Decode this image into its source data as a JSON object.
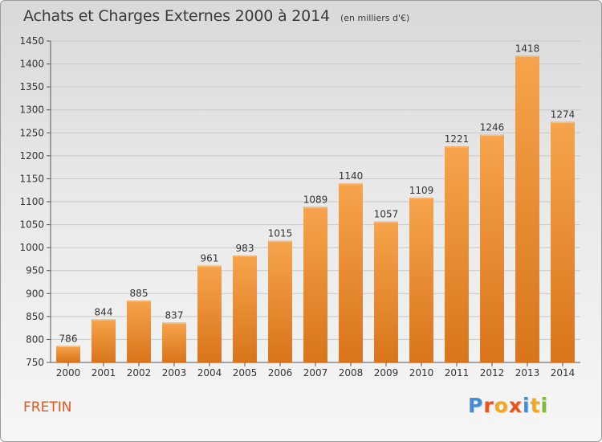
{
  "header": {
    "title": "Achats et Charges Externes 2000 à 2014",
    "unit": "(en milliers d'€)"
  },
  "footer": {
    "commune": "FRETIN",
    "logo_text": "Proxiti",
    "logo_colors": [
      "#3a8fd6",
      "#e8541a",
      "#f2a81d",
      "#e8541a",
      "#3a8fd6",
      "#f2a81d",
      "#7bbf2a"
    ]
  },
  "colors": {
    "bar_top": "#f6a44c",
    "bar_bottom": "#d9741a",
    "accent": "#e8541a"
  },
  "chart_data": {
    "type": "bar",
    "categories": [
      "2000",
      "2001",
      "2002",
      "2003",
      "2004",
      "2005",
      "2006",
      "2007",
      "2008",
      "2009",
      "2010",
      "2011",
      "2012",
      "2013",
      "2014"
    ],
    "values": [
      786,
      844,
      885,
      837,
      961,
      983,
      1015,
      1089,
      1140,
      1057,
      1109,
      1221,
      1246,
      1418,
      1274
    ],
    "title": "Achats et Charges Externes 2000 à 2014",
    "ylim": [
      750,
      1450
    ],
    "yticks": [
      750,
      800,
      850,
      900,
      950,
      1000,
      1050,
      1100,
      1150,
      1200,
      1250,
      1300,
      1350,
      1400,
      1450
    ],
    "grid": true
  }
}
